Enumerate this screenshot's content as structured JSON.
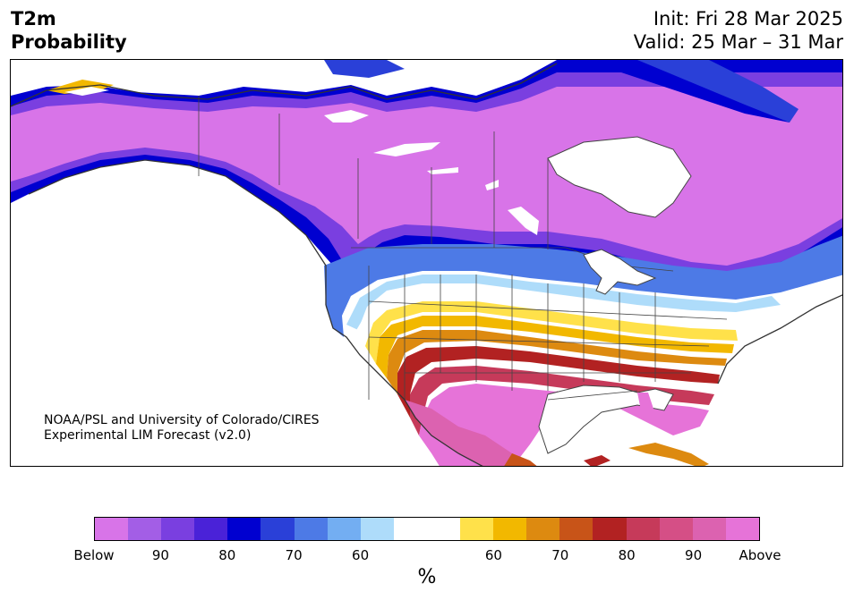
{
  "header": {
    "variable": "T2m",
    "product": "Probability",
    "init": "Init: Fri 28 Mar 2025",
    "valid": "Valid: 25 Mar – 31 Mar"
  },
  "credit": {
    "line1": "NOAA/PSL and University of Colorado/CIRES",
    "line2": "Experimental LIM Forecast (v2.0)"
  },
  "colorbar": {
    "unit": "%",
    "colors": [
      "#d874e8",
      "#a35ee6",
      "#7a3fe0",
      "#4a22d8",
      "#0000d0",
      "#2a40d8",
      "#4d7ae6",
      "#73aef2",
      "#aedcfa",
      "#ffffff",
      "#ffffff",
      "#ffe14a",
      "#f2b800",
      "#dd8a10",
      "#c85418",
      "#b22222",
      "#c63a5a",
      "#d54f86",
      "#dc62b0",
      "#e673d8"
    ],
    "tick_labels": [
      "Below",
      "90",
      "80",
      "70",
      "60",
      "60",
      "70",
      "80",
      "90",
      "Above"
    ]
  },
  "map_legend": {
    "colors": {
      "below_strong": "#d874e8",
      "below_90": "#a35ee6",
      "below_85": "#7a3fe0",
      "below_80": "#0000d0",
      "below_70": "#4d7ae6",
      "below_60": "#aedcfa",
      "neutral": "#ffffff",
      "above_60": "#ffe14a",
      "above_65": "#f2b800",
      "above_70": "#dd8a10",
      "above_75": "#c85418",
      "above_80": "#b22222",
      "above_85": "#c63a5a",
      "above_strong": "#e673d8",
      "border": "#444444"
    }
  }
}
